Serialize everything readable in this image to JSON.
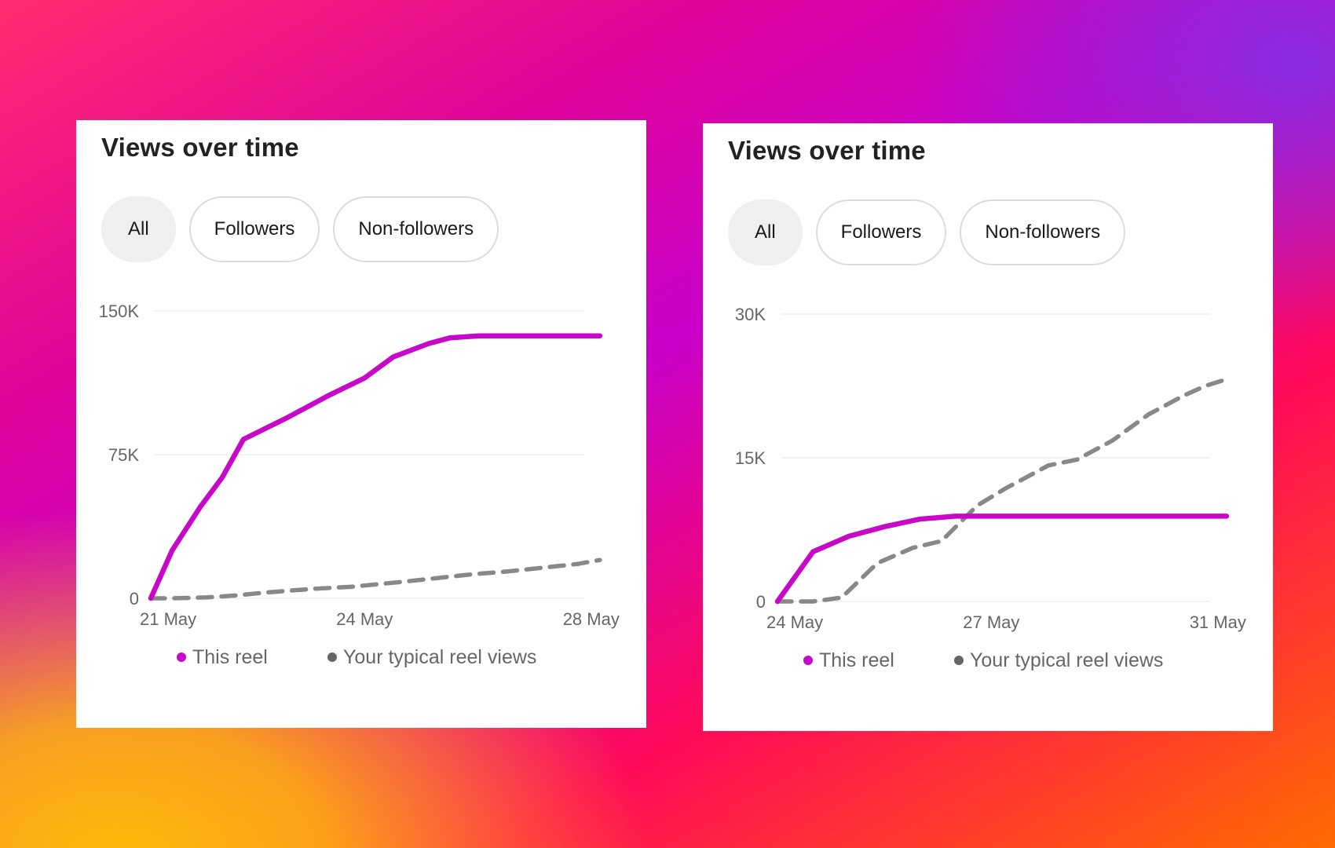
{
  "colors": {
    "this_reel": "#c808c8",
    "typical": "#888888",
    "grid": "#eeeeee",
    "axis_text": "#666666"
  },
  "cards": [
    {
      "title": "Views over time",
      "tabs": [
        "All",
        "Followers",
        "Non-followers"
      ],
      "active_tab": "All",
      "legend": {
        "series_a": "This reel",
        "series_b": "Your typical reel views"
      },
      "chart_data": {
        "type": "line",
        "ylim": [
          0,
          150000
        ],
        "y_ticks": [
          0,
          75000,
          150000
        ],
        "y_tick_labels": [
          "0",
          "75K",
          "150K"
        ],
        "x_ticks": [
          0,
          3,
          6
        ],
        "x_tick_labels": [
          "21 May",
          "24 May",
          "28 May"
        ],
        "x_range": [
          0,
          6.4
        ],
        "series": [
          {
            "name": "This reel",
            "style": "solid",
            "x": [
              0,
              0.3,
              0.7,
              1.0,
              1.3,
              1.9,
              2.5,
              3.0,
              3.4,
              3.9,
              4.2,
              4.6,
              5.0,
              5.5,
              6.0,
              6.3
            ],
            "y": [
              0,
              25000,
              48000,
              63000,
              83000,
              94000,
              106000,
              115000,
              126000,
              133000,
              136000,
              137000,
              137000,
              137000,
              137000,
              137000
            ]
          },
          {
            "name": "Your typical reel views",
            "style": "dashed",
            "x": [
              0,
              0.3,
              0.8,
              1.2,
              1.6,
              2.3,
              2.8,
              3.5,
              4.0,
              4.5,
              5.0,
              5.5,
              6.0,
              6.3
            ],
            "y": [
              0,
              0,
              500,
              1500,
              3000,
              5000,
              6000,
              8500,
              10500,
              12500,
              14000,
              16000,
              18000,
              20000
            ]
          }
        ]
      }
    },
    {
      "title": "Views over time",
      "tabs": [
        "All",
        "Followers",
        "Non-followers"
      ],
      "active_tab": "All",
      "legend": {
        "series_a": "This reel",
        "series_b": "Your typical reel views"
      },
      "chart_data": {
        "type": "line",
        "ylim": [
          0,
          30000
        ],
        "y_ticks": [
          0,
          15000,
          30000
        ],
        "y_tick_labels": [
          "0",
          "15K",
          "30K"
        ],
        "x_ticks": [
          0,
          3,
          6
        ],
        "x_tick_labels": [
          "24 May",
          "27 May",
          "31 May"
        ],
        "x_range": [
          0,
          6.4
        ],
        "series": [
          {
            "name": "This reel",
            "style": "solid",
            "x": [
              0,
              0.5,
              1.0,
              1.5,
              2.0,
              2.5,
              3.0,
              4.0,
              5.0,
              6.0,
              6.3
            ],
            "y": [
              0,
              5200,
              6800,
              7800,
              8600,
              8900,
              8900,
              8900,
              8900,
              8900,
              8900
            ]
          },
          {
            "name": "Your typical reel views",
            "style": "dashed",
            "x": [
              0,
              0.5,
              0.9,
              1.4,
              1.9,
              2.3,
              2.8,
              3.2,
              3.8,
              4.2,
              4.7,
              5.2,
              5.7,
              6.0,
              6.3
            ],
            "y": [
              0,
              0,
              400,
              4000,
              5600,
              6300,
              10000,
              11800,
              14200,
              14800,
              16800,
              19500,
              21500,
              22500,
              23200
            ]
          }
        ]
      }
    }
  ]
}
